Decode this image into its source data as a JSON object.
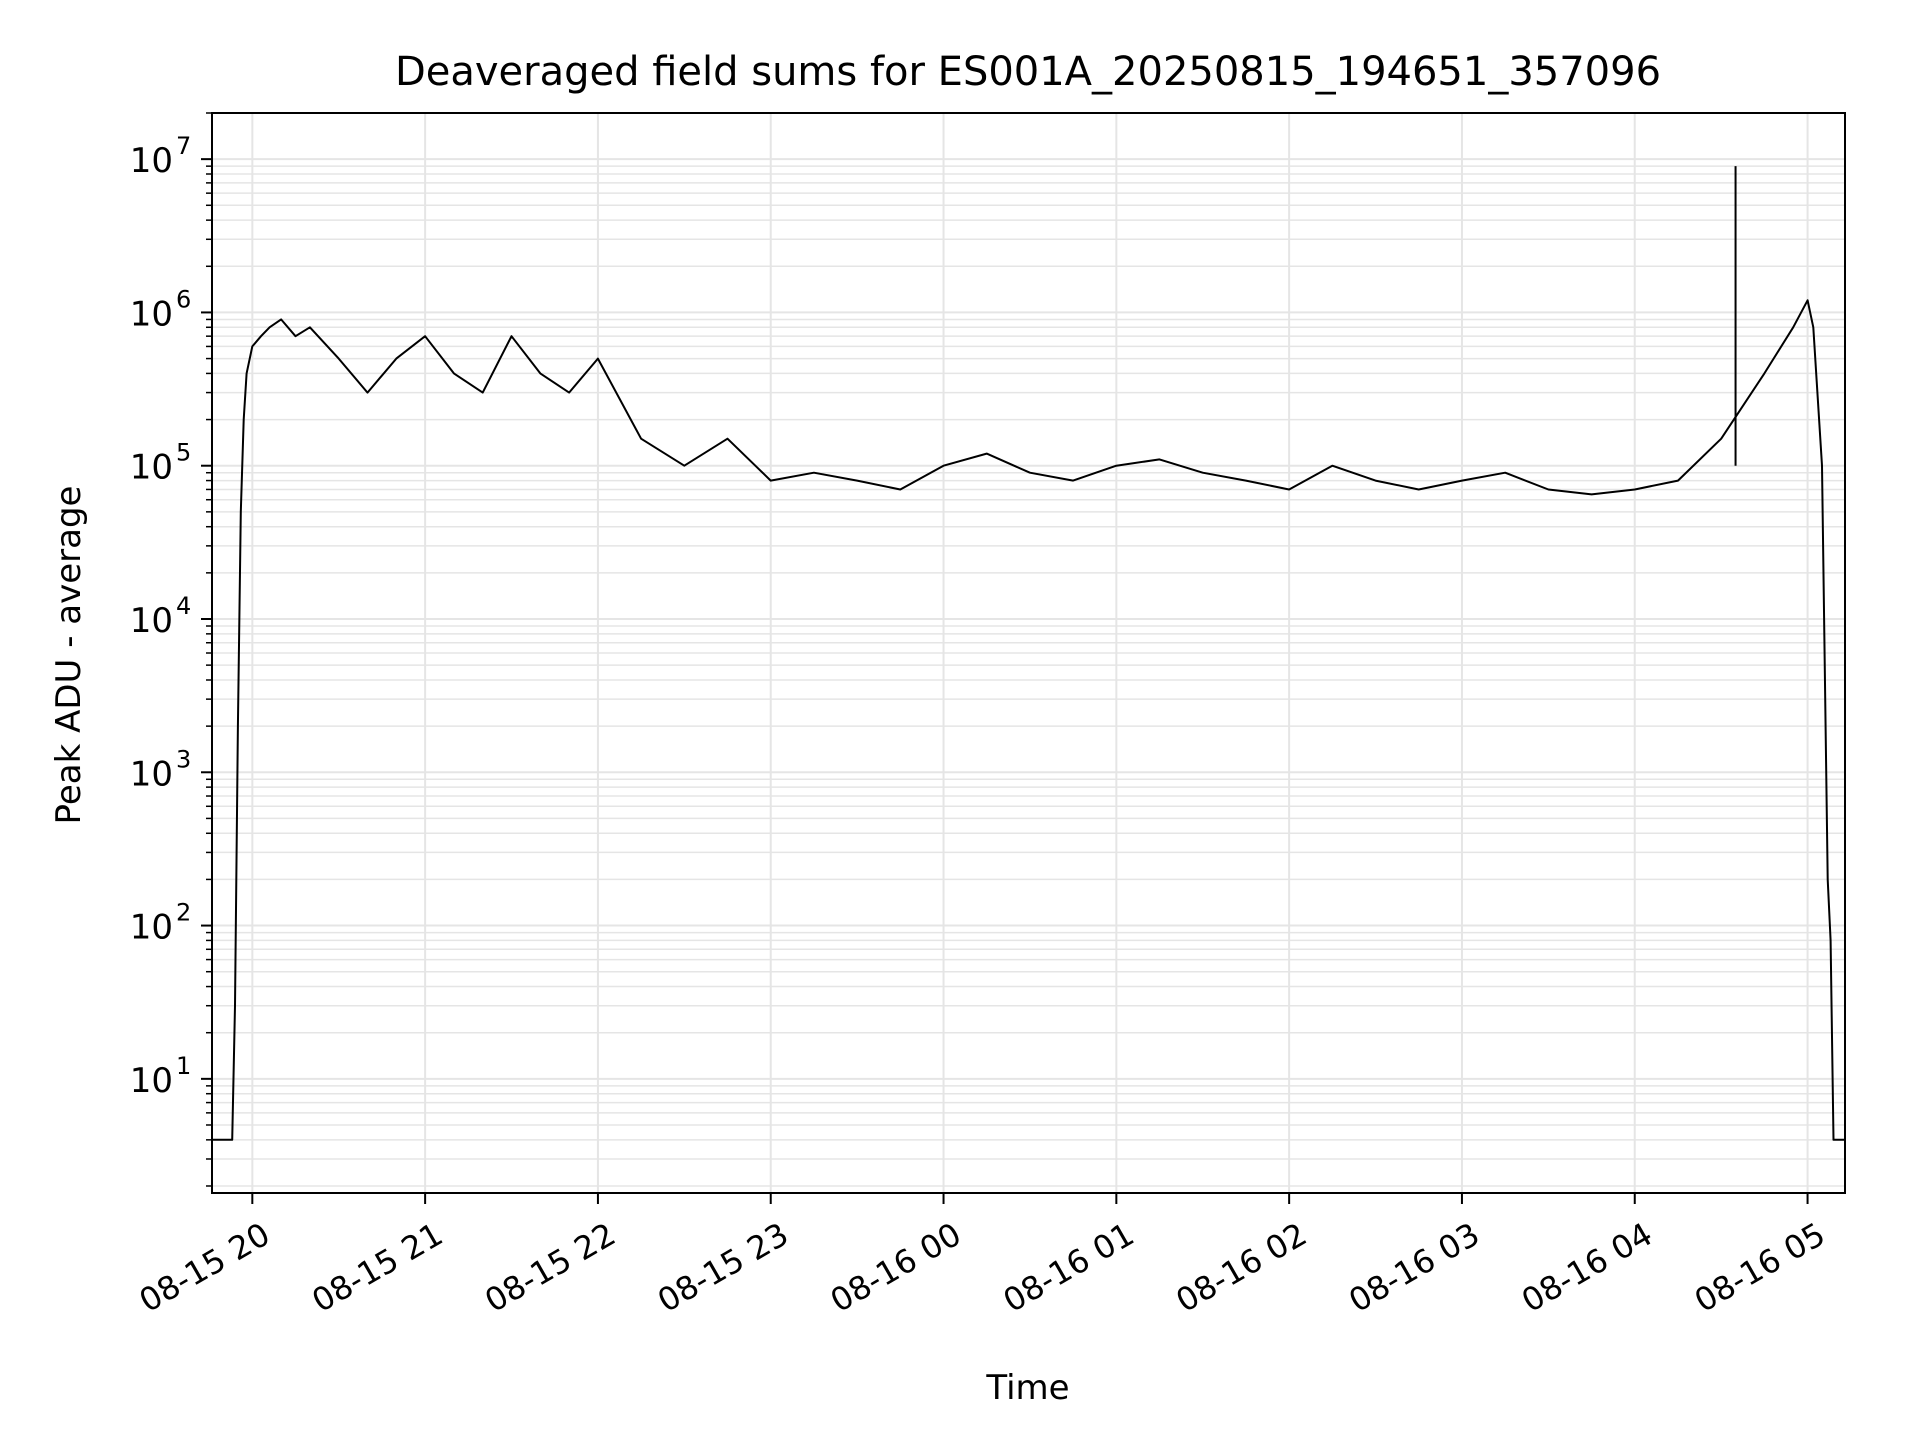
{
  "chart_data": {
    "type": "line",
    "title": "Deaveraged field sums for ES001A_20250815_194651_357096",
    "xlabel": "Time",
    "ylabel": "Peak ADU - average",
    "yscale": "log",
    "ylim": [
      1.8,
      20000000
    ],
    "xlim": [
      "2025-08-15 19:46",
      "2025-08-16 05:13"
    ],
    "grid": true,
    "line_color": "#000000",
    "grid_color": "#e5e5e5",
    "x_ticks": [
      {
        "label": "08-15 20",
        "value": "2025-08-15 20:00"
      },
      {
        "label": "08-15 21",
        "value": "2025-08-15 21:00"
      },
      {
        "label": "08-15 22",
        "value": "2025-08-15 22:00"
      },
      {
        "label": "08-15 23",
        "value": "2025-08-15 23:00"
      },
      {
        "label": "08-16 00",
        "value": "2025-08-16 00:00"
      },
      {
        "label": "08-16 01",
        "value": "2025-08-16 01:00"
      },
      {
        "label": "08-16 02",
        "value": "2025-08-16 02:00"
      },
      {
        "label": "08-16 03",
        "value": "2025-08-16 03:00"
      },
      {
        "label": "08-16 04",
        "value": "2025-08-16 04:00"
      },
      {
        "label": "08-16 05",
        "value": "2025-08-16 05:00"
      }
    ],
    "y_ticks": [
      {
        "base": "10",
        "exp": "1",
        "value": 10
      },
      {
        "base": "10",
        "exp": "2",
        "value": 100
      },
      {
        "base": "10",
        "exp": "3",
        "value": 1000
      },
      {
        "base": "10",
        "exp": "4",
        "value": 10000
      },
      {
        "base": "10",
        "exp": "5",
        "value": 100000
      },
      {
        "base": "10",
        "exp": "6",
        "value": 1000000
      },
      {
        "base": "10",
        "exp": "7",
        "value": 10000000
      }
    ],
    "series": [
      {
        "x": [
          "2025-08-15 19:46",
          "2025-08-15 19:53",
          "2025-08-15 19:54",
          "2025-08-15 19:55",
          "2025-08-15 19:56",
          "2025-08-15 19:57",
          "2025-08-15 19:58",
          "2025-08-15 20:00",
          "2025-08-15 20:03",
          "2025-08-15 20:06",
          "2025-08-15 20:10",
          "2025-08-15 20:15",
          "2025-08-15 20:20",
          "2025-08-15 20:30",
          "2025-08-15 20:40",
          "2025-08-15 20:50",
          "2025-08-15 21:00",
          "2025-08-15 21:10",
          "2025-08-15 21:20",
          "2025-08-15 21:30",
          "2025-08-15 21:40",
          "2025-08-15 21:50",
          "2025-08-15 22:00",
          "2025-08-15 22:15",
          "2025-08-15 22:30",
          "2025-08-15 22:45",
          "2025-08-15 23:00",
          "2025-08-15 23:15",
          "2025-08-15 23:30",
          "2025-08-15 23:45",
          "2025-08-16 00:00",
          "2025-08-16 00:15",
          "2025-08-16 00:30",
          "2025-08-16 00:45",
          "2025-08-16 01:00",
          "2025-08-16 01:15",
          "2025-08-16 01:30",
          "2025-08-16 01:45",
          "2025-08-16 02:00",
          "2025-08-16 02:15",
          "2025-08-16 02:30",
          "2025-08-16 02:45",
          "2025-08-16 03:00",
          "2025-08-16 03:15",
          "2025-08-16 03:30",
          "2025-08-16 03:45",
          "2025-08-16 04:00",
          "2025-08-16 04:15",
          "2025-08-16 04:30",
          "2025-08-16 04:45",
          "2025-08-16 04:55",
          "2025-08-16 05:00",
          "2025-08-16 05:02",
          "2025-08-16 05:05",
          "2025-08-16 05:07",
          "2025-08-16 05:08",
          "2025-08-16 05:09",
          "2025-08-16 05:13"
        ],
        "y": [
          4,
          4,
          30,
          2000,
          50000,
          200000,
          400000,
          600000,
          700000,
          800000,
          900000,
          700000,
          800000,
          500000,
          300000,
          500000,
          700000,
          400000,
          300000,
          700000,
          400000,
          300000,
          500000,
          150000,
          100000,
          150000,
          80000,
          90000,
          80000,
          70000,
          100000,
          120000,
          90000,
          80000,
          100000,
          110000,
          90000,
          80000,
          70000,
          100000,
          80000,
          70000,
          80000,
          90000,
          70000,
          65000,
          70000,
          80000,
          150000,
          400000,
          800000,
          1200000,
          800000,
          100000,
          200,
          80,
          4,
          4
        ]
      }
    ],
    "annotations": [
      "spike ~9000000 at 2025-08-16 04:35"
    ]
  }
}
